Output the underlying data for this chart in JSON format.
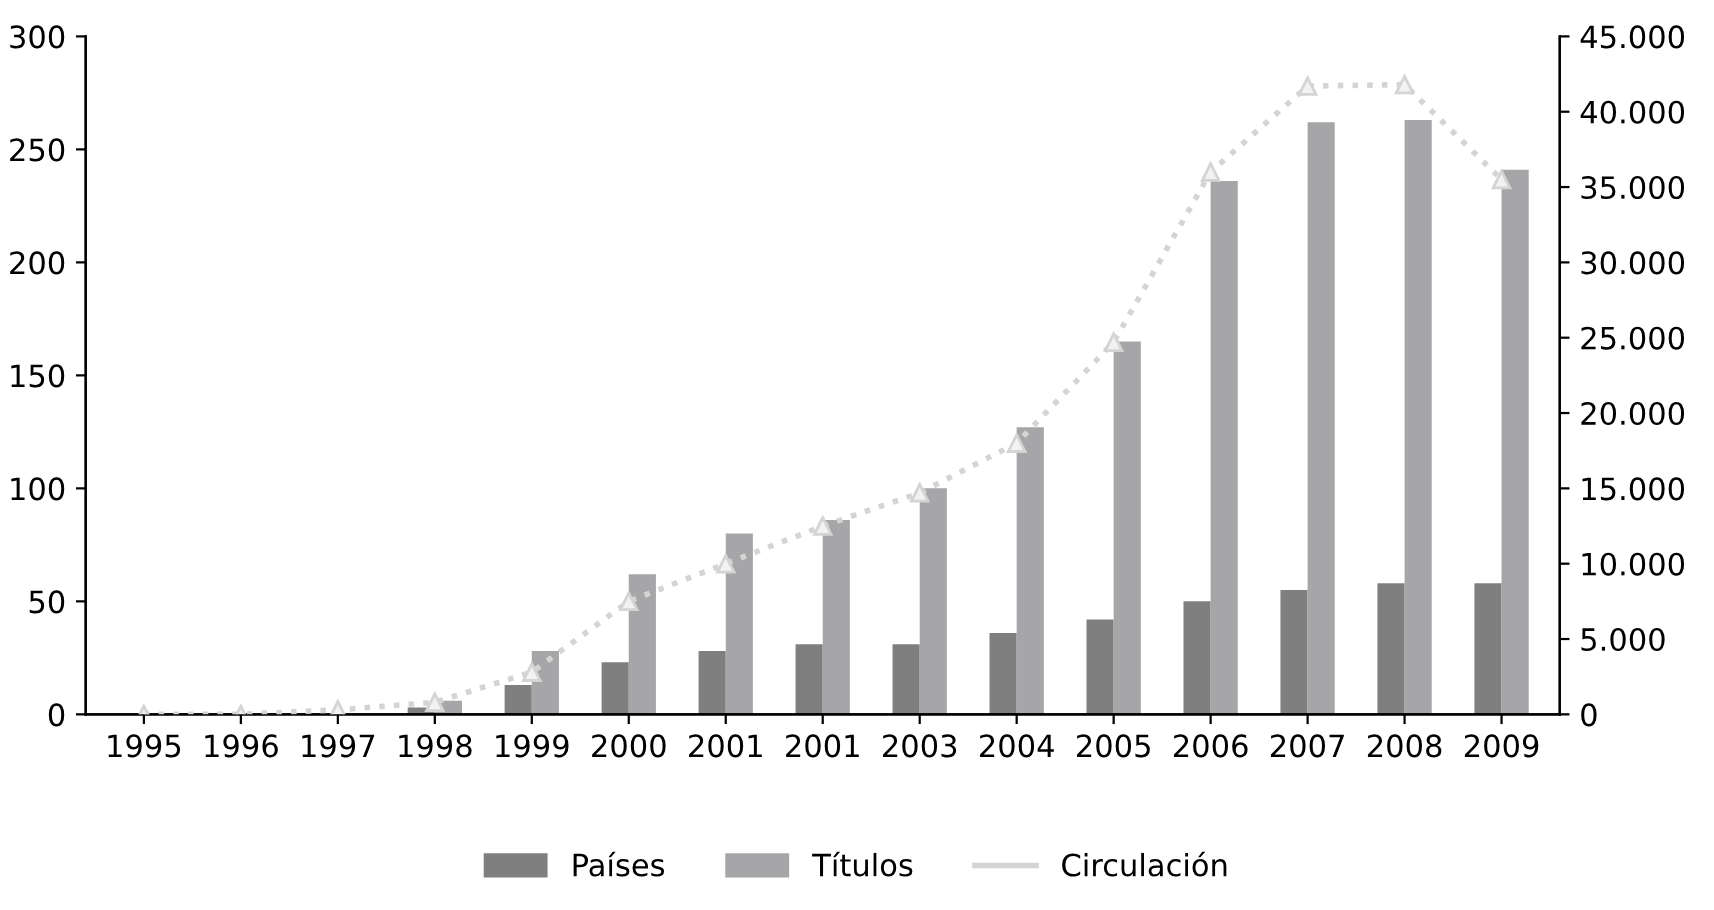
{
  "chart_data": {
    "type": "bar",
    "categories": [
      "1995",
      "1996",
      "1997",
      "1998",
      "1999",
      "2000",
      "2001",
      "2001",
      "2003",
      "2004",
      "2005",
      "2006",
      "2007",
      "2008",
      "2009"
    ],
    "series": [
      {
        "name": "Países",
        "color": "#7f7f80",
        "values": [
          null,
          0,
          null,
          3,
          13,
          23,
          28,
          31,
          31,
          36,
          42,
          50,
          55,
          58,
          58
        ]
      },
      {
        "name": "Títulos",
        "color": "#a6a6a8",
        "values": [
          0,
          0,
          null,
          6,
          28,
          62,
          80,
          86,
          100,
          127,
          165,
          236,
          262,
          263,
          241
        ]
      },
      {
        "name": "Circulación",
        "type": "line",
        "axis": "y2",
        "color": "#d4d4d4",
        "marker": "triangle",
        "line_style": "dotted",
        "values": [
          0,
          0,
          300,
          800,
          2800,
          7500,
          10000,
          12500,
          14700,
          18000,
          24700,
          36000,
          41700,
          41800,
          35500
        ]
      }
    ],
    "ylim": [
      0,
      300
    ],
    "yticks": [
      0,
      50,
      100,
      150,
      200,
      250,
      300
    ],
    "y2lim": [
      0,
      45000
    ],
    "y2ticks": [
      0,
      {
        "value": 5000,
        "label": "5.000"
      },
      {
        "value": 10000,
        "label": "10.000"
      },
      {
        "value": 15000,
        "label": "15.000"
      },
      {
        "value": 20000,
        "label": "20.000"
      },
      {
        "value": 25000,
        "label": "25.000"
      },
      {
        "value": 30000,
        "label": "30.000"
      },
      {
        "value": 35000,
        "label": "35.000"
      },
      {
        "value": 40000,
        "label": "40.000"
      },
      {
        "value": 45000,
        "label": "45.000"
      }
    ],
    "grid": false,
    "legend": "bottom"
  }
}
